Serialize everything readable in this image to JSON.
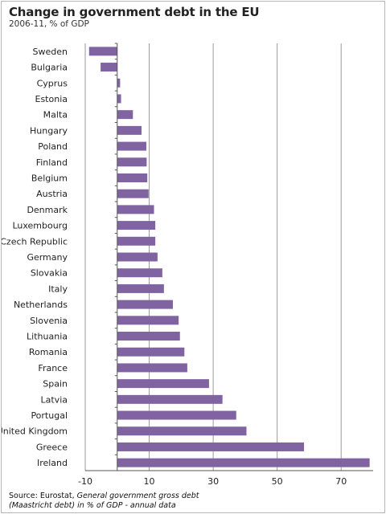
{
  "title": "Change in government debt in the EU",
  "subtitle": "2006-11, % of GDP",
  "source": {
    "prefix": "Source: Eurostat, ",
    "italic_1": "General government gross debt",
    "italic_2": "(Maastricht debt) in % of GDP - annual data"
  },
  "chart_data": {
    "type": "bar",
    "orientation": "horizontal",
    "title": "Change in government debt in the EU",
    "subtitle": "2006-11, % of GDP",
    "categories": [
      "Sweden",
      "Bulgaria",
      "Cyprus",
      "Estonia",
      "Malta",
      "Hungary",
      "Poland",
      "Finland",
      "Belgium",
      "Austria",
      "Denmark",
      "Luxembourg",
      "Czech Republic",
      "Germany",
      "Slovakia",
      "Italy",
      "Netherlands",
      "Slovenia",
      "Lithuania",
      "Romania",
      "France",
      "Spain",
      "Latvia",
      "Portugal",
      "United Kingdom",
      "Greece",
      "Ireland"
    ],
    "values": [
      -8.8,
      -5.2,
      0.9,
      1.2,
      4.9,
      7.6,
      9.1,
      9.2,
      9.4,
      9.8,
      11.5,
      11.9,
      11.9,
      12.6,
      14.1,
      14.6,
      17.4,
      19.2,
      19.6,
      21.0,
      21.9,
      28.7,
      32.9,
      37.2,
      40.4,
      58.4,
      78.9
    ],
    "xlim": [
      -10,
      80
    ],
    "xticks": [
      -10,
      10,
      30,
      50,
      70
    ],
    "grid": true,
    "colors": {
      "bar": "#8064a2",
      "grid": "#9a9a9a",
      "zero_line": "#555555"
    }
  }
}
